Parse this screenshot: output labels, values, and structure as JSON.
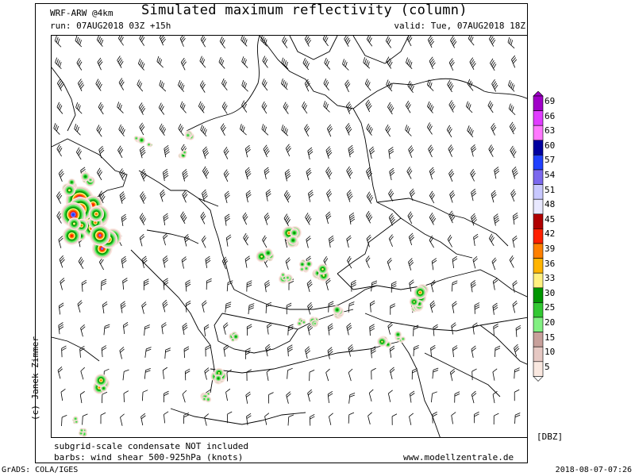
{
  "header": {
    "model": "WRF-ARW @4km",
    "title": "Simulated maximum reflectivity (column)",
    "run": "run: 07AUG2018 03Z +15h",
    "valid": "valid: Tue, 07AUG2018 18Z"
  },
  "credit": "(c) Janek Zimmer",
  "footer": {
    "line1": "subgrid-scale condensate NOT included",
    "line2": "barbs: wind shear 500-925hPa (knots)",
    "site": "www.modellzentrale.de",
    "unit": "[DBZ]"
  },
  "bottom": {
    "grads": "GrADS: COLA/IGES",
    "timestamp": "2018-08-07-07:26"
  },
  "legend": {
    "levels": [
      "69",
      "66",
      "63",
      "60",
      "57",
      "54",
      "51",
      "48",
      "45",
      "42",
      "39",
      "36",
      "33",
      "30",
      "25",
      "20",
      "15",
      "10",
      "5"
    ],
    "colors": [
      "#a000c8",
      "#e03cff",
      "#ff78ff",
      "#0000a0",
      "#2040ff",
      "#7b68ee",
      "#c8c8ff",
      "#e8e8ff",
      "#b00000",
      "#ff2000",
      "#ff8000",
      "#ffb400",
      "#fff07f",
      "#009600",
      "#32c832",
      "#82f082",
      "#c8a09b",
      "#e6c8c3",
      "#fae8e0"
    ]
  }
}
